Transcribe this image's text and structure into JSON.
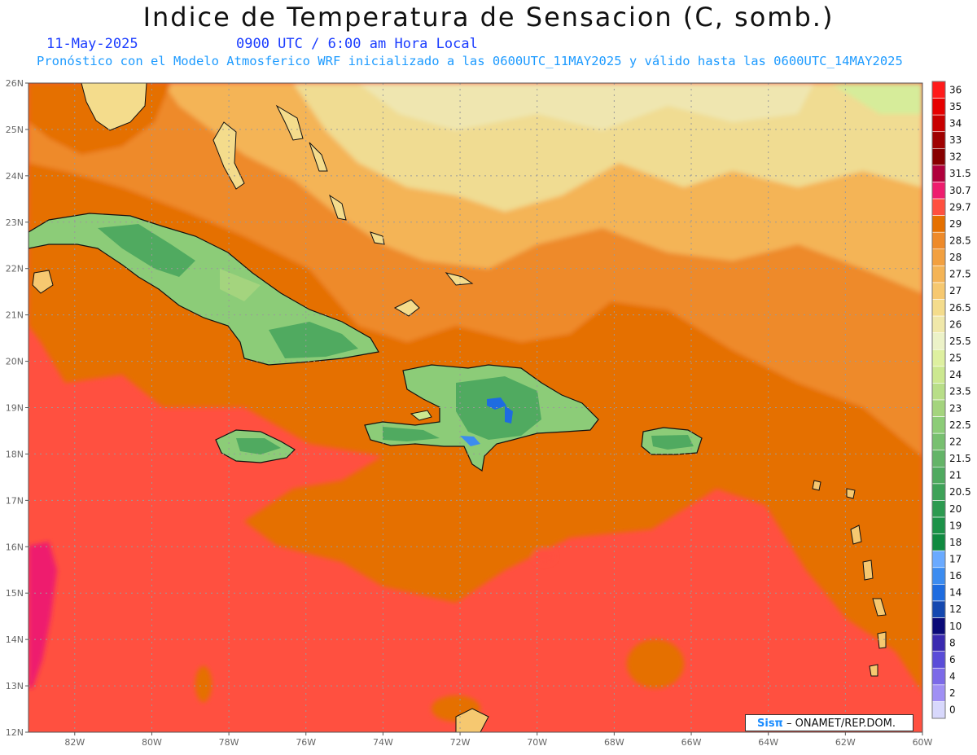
{
  "title": "Indice de Temperatura de Sensacion (C, somb.)",
  "date_label": "11-May-2025",
  "time_label": "0900 UTC / 6:00 am Hora Local",
  "forecast_label": "Pronóstico con el Modelo Atmosferico WRF inicializado a las 0600UTC_11MAY2025 y válido hasta las  0600UTC_14MAY2025",
  "credit": {
    "logo": "Sisπ",
    "text": "– ONAMET/REP.DOM."
  },
  "map": {
    "lat_labels": [
      "26N",
      "25N",
      "24N",
      "23N",
      "22N",
      "21N",
      "20N",
      "19N",
      "18N",
      "17N",
      "16N",
      "15N",
      "14N",
      "13N",
      "12N"
    ],
    "lon_labels": [
      "82W",
      "80W",
      "78W",
      "76W",
      "74W",
      "72W",
      "70W",
      "68W",
      "66W",
      "64W",
      "62W",
      "60W"
    ],
    "lat_range": [
      12,
      26
    ],
    "lon_range": [
      -83.2,
      -60
    ]
  },
  "legend": {
    "levels": [
      {
        "label": "36",
        "color": "#ff1a1a"
      },
      {
        "label": "35",
        "color": "#e60000"
      },
      {
        "label": "34",
        "color": "#c80000"
      },
      {
        "label": "33",
        "color": "#a00000"
      },
      {
        "label": "32",
        "color": "#880000"
      },
      {
        "label": "31.5",
        "color": "#b0003c"
      },
      {
        "label": "30.7",
        "color": "#ee1c6e"
      },
      {
        "label": "29.7",
        "color": "#ff5040"
      },
      {
        "label": "29",
        "color": "#e57000"
      },
      {
        "label": "28.5",
        "color": "#ee8a2a"
      },
      {
        "label": "28",
        "color": "#f2a040"
      },
      {
        "label": "27.5",
        "color": "#f4b456"
      },
      {
        "label": "27",
        "color": "#f6c870"
      },
      {
        "label": "26.5",
        "color": "#f4dc8c"
      },
      {
        "label": "26",
        "color": "#f0e8aa"
      },
      {
        "label": "25.5",
        "color": "#ecf2c8"
      },
      {
        "label": "25",
        "color": "#def0a0"
      },
      {
        "label": "24",
        "color": "#cce890"
      },
      {
        "label": "23.5",
        "color": "#b8de88"
      },
      {
        "label": "23",
        "color": "#a4d47e"
      },
      {
        "label": "22.5",
        "color": "#8ccc78"
      },
      {
        "label": "22",
        "color": "#78c070"
      },
      {
        "label": "21.5",
        "color": "#64b468"
      },
      {
        "label": "21",
        "color": "#50aa60"
      },
      {
        "label": "20.5",
        "color": "#3ea258"
      },
      {
        "label": "20",
        "color": "#2c9a50"
      },
      {
        "label": "19",
        "color": "#1c9248"
      },
      {
        "label": "18",
        "color": "#108a40"
      },
      {
        "label": "17",
        "color": "#6aaaff"
      },
      {
        "label": "16",
        "color": "#3c8cf0"
      },
      {
        "label": "14",
        "color": "#1e6ce0"
      },
      {
        "label": "12",
        "color": "#1448b0"
      },
      {
        "label": "10",
        "color": "#0a0a78"
      },
      {
        "label": "8",
        "color": "#3a2ab0"
      },
      {
        "label": "6",
        "color": "#5a4cd8"
      },
      {
        "label": "4",
        "color": "#7c6ae8"
      },
      {
        "label": "2",
        "color": "#a090f4"
      },
      {
        "label": "0",
        "color": "#d8d8fc"
      }
    ]
  }
}
